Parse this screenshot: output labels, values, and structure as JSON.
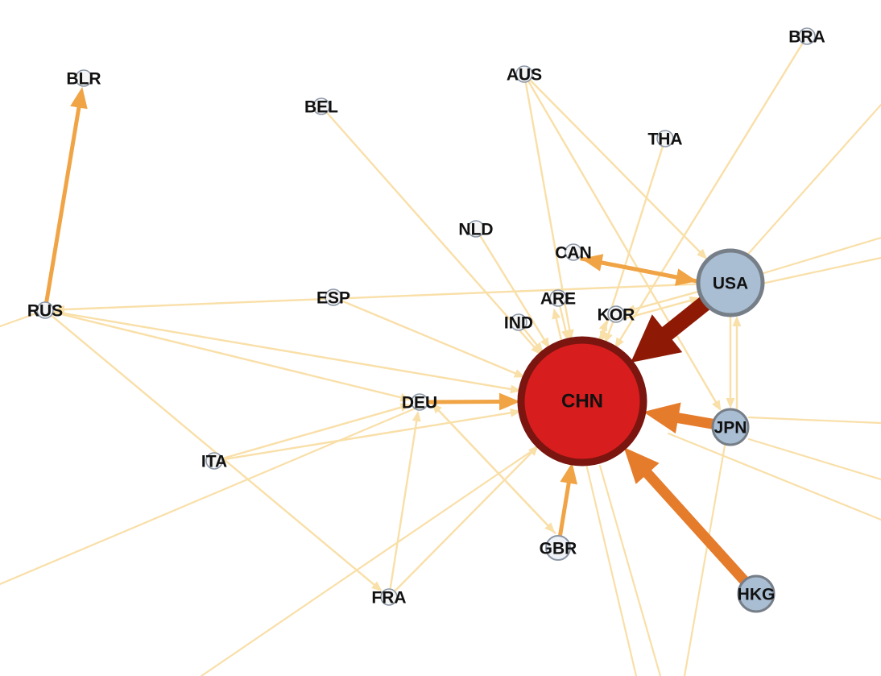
{
  "palette": {
    "edge_light": "#f9dfa8",
    "edge_medium": "#f0a445",
    "edge_strong": "#e57c2c",
    "edge_dark": "#8e1a06",
    "node_small_fill": "#f4f4f4",
    "node_small_stroke": "#8a96a6",
    "node_blue_fill": "#a9bed3",
    "node_blue_stroke": "#767e88",
    "hub_fill": "#d71d1d",
    "hub_stroke": "#7a1510"
  },
  "nodes": [
    {
      "id": "CHN",
      "label": "CHN",
      "kind": "hub"
    },
    {
      "id": "USA",
      "label": "USA",
      "kind": "large"
    },
    {
      "id": "JPN",
      "label": "JPN",
      "kind": "medium"
    },
    {
      "id": "HKG",
      "label": "HKG",
      "kind": "medium"
    },
    {
      "id": "GBR",
      "label": "GBR",
      "kind": "medium-small"
    },
    {
      "id": "DEU",
      "label": "DEU",
      "kind": "small"
    },
    {
      "id": "KOR",
      "label": "KOR",
      "kind": "small"
    },
    {
      "id": "IND",
      "label": "IND",
      "kind": "small"
    },
    {
      "id": "ARE",
      "label": "ARE",
      "kind": "small"
    },
    {
      "id": "CAN",
      "label": "CAN",
      "kind": "small"
    },
    {
      "id": "NLD",
      "label": "NLD",
      "kind": "small"
    },
    {
      "id": "ESP",
      "label": "ESP",
      "kind": "small"
    },
    {
      "id": "RUS",
      "label": "RUS",
      "kind": "small"
    },
    {
      "id": "BLR",
      "label": "BLR",
      "kind": "small"
    },
    {
      "id": "BEL",
      "label": "BEL",
      "kind": "small"
    },
    {
      "id": "AUS",
      "label": "AUS",
      "kind": "small"
    },
    {
      "id": "THA",
      "label": "THA",
      "kind": "small"
    },
    {
      "id": "BRA",
      "label": "BRA",
      "kind": "small"
    },
    {
      "id": "ITA",
      "label": "ITA",
      "kind": "small"
    },
    {
      "id": "FRA",
      "label": "FRA",
      "kind": "small"
    }
  ],
  "edges": [
    {
      "from": "USA",
      "to": "CHN",
      "level": "dark"
    },
    {
      "from": "HKG",
      "to": "CHN",
      "level": "strong"
    },
    {
      "from": "JPN",
      "to": "CHN",
      "level": "strong"
    },
    {
      "from": "DEU",
      "to": "CHN",
      "level": "medium"
    },
    {
      "from": "USA",
      "to": "CAN",
      "level": "medium"
    },
    {
      "from": "CAN",
      "to": "USA",
      "level": "medium"
    },
    {
      "from": "RUS",
      "to": "BLR",
      "level": "medium"
    },
    {
      "from": "GBR",
      "to": "CHN",
      "level": "medium"
    },
    {
      "from": "KOR",
      "to": "CHN",
      "level": "light"
    },
    {
      "from": "IND",
      "to": "CHN",
      "level": "light"
    },
    {
      "from": "ARE",
      "to": "CHN",
      "level": "light"
    },
    {
      "from": "NLD",
      "to": "CHN",
      "level": "light"
    },
    {
      "from": "ESP",
      "to": "CHN",
      "level": "light"
    },
    {
      "from": "RUS",
      "to": "CHN",
      "level": "light"
    },
    {
      "from": "BEL",
      "to": "CHN",
      "level": "light"
    },
    {
      "from": "AUS",
      "to": "CHN",
      "level": "light"
    },
    {
      "from": "AUS",
      "to": "USA",
      "level": "light"
    },
    {
      "from": "THA",
      "to": "CHN",
      "level": "light"
    },
    {
      "from": "BRA",
      "to": "CHN",
      "level": "light"
    },
    {
      "from": "ITA",
      "to": "CHN",
      "level": "light"
    },
    {
      "from": "FRA",
      "to": "CHN",
      "level": "light"
    },
    {
      "from": "FRA",
      "to": "DEU",
      "level": "light"
    },
    {
      "from": "ITA",
      "to": "DEU",
      "level": "light"
    },
    {
      "from": "RUS",
      "to": "DEU",
      "level": "light"
    },
    {
      "from": "USA",
      "to": "JPN",
      "level": "light"
    },
    {
      "from": "USA",
      "to": "RUS",
      "level": "light"
    },
    {
      "from": "USA",
      "to": "KOR",
      "level": "light"
    },
    {
      "from": "CHN",
      "to": "KOR",
      "level": "light"
    },
    {
      "from": "CHN",
      "to": "ARE",
      "level": "light"
    },
    {
      "from": "DEU",
      "to": "GBR",
      "level": "light"
    },
    {
      "from": "GBR",
      "to": "DEU",
      "level": "light"
    },
    {
      "from": "RUS",
      "to": "FRA",
      "level": "light"
    },
    {
      "from": "KOR",
      "to": "USA",
      "level": "light"
    },
    {
      "from": "JPN",
      "to": "USA",
      "level": "light"
    },
    {
      "from": "AUS",
      "to": "JPN",
      "level": "light"
    }
  ]
}
